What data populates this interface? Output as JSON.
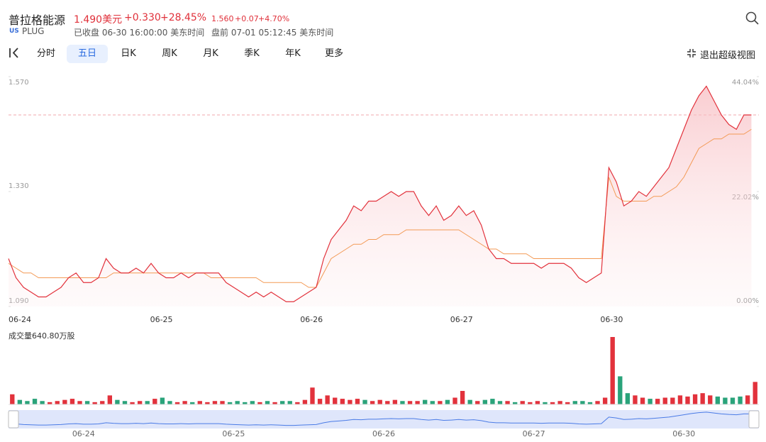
{
  "header": {
    "name": "普拉格能源",
    "price": "1.490美元",
    "change": "+0.330",
    "change_pct": "+28.45%",
    "ext_price": "1.560",
    "ext_change": "+0.07",
    "ext_pct": "+4.70%",
    "market": "US",
    "ticker": "PLUG",
    "status": "已收盘 06-30 16:00:00 美东时间",
    "premarket": "盘前 07-01 05:12:45 美东时间"
  },
  "toolbar": {
    "tabs": [
      "分时",
      "五日",
      "日K",
      "周K",
      "月K",
      "季K",
      "年K",
      "更多"
    ],
    "active": 1,
    "exit": "退出超级视图"
  },
  "chart_data": {
    "type": "line",
    "categories": [
      "06-24",
      null,
      null,
      null,
      null,
      null,
      null,
      null,
      null,
      null,
      null,
      null,
      null,
      null,
      null,
      null,
      null,
      null,
      null,
      null,
      "06-25",
      null,
      null,
      null,
      null,
      null,
      null,
      null,
      null,
      null,
      null,
      null,
      null,
      null,
      null,
      null,
      null,
      null,
      null,
      null,
      "06-26",
      null,
      null,
      null,
      null,
      null,
      null,
      null,
      null,
      null,
      null,
      null,
      null,
      null,
      null,
      null,
      null,
      null,
      null,
      null,
      "06-27",
      null,
      null,
      null,
      null,
      null,
      null,
      null,
      null,
      null,
      null,
      null,
      null,
      null,
      null,
      null,
      null,
      null,
      null,
      null,
      "06-30",
      null,
      null,
      null,
      null,
      null,
      null,
      null,
      null,
      null,
      null,
      null,
      null,
      null,
      null,
      null,
      null,
      null,
      null,
      null
    ],
    "series": [
      {
        "color": "#e2323c",
        "values": [
          1.19,
          1.15,
          1.13,
          1.12,
          1.11,
          1.11,
          1.12,
          1.13,
          1.15,
          1.16,
          1.14,
          1.14,
          1.15,
          1.19,
          1.17,
          1.16,
          1.16,
          1.17,
          1.16,
          1.18,
          1.16,
          1.15,
          1.15,
          1.16,
          1.15,
          1.16,
          1.16,
          1.16,
          1.16,
          1.14,
          1.13,
          1.12,
          1.11,
          1.12,
          1.11,
          1.12,
          1.11,
          1.1,
          1.1,
          1.11,
          1.12,
          1.13,
          1.19,
          1.23,
          1.25,
          1.27,
          1.3,
          1.29,
          1.31,
          1.31,
          1.32,
          1.33,
          1.32,
          1.33,
          1.33,
          1.3,
          1.28,
          1.3,
          1.27,
          1.28,
          1.3,
          1.28,
          1.29,
          1.26,
          1.21,
          1.19,
          1.19,
          1.18,
          1.18,
          1.18,
          1.18,
          1.17,
          1.18,
          1.18,
          1.18,
          1.17,
          1.15,
          1.14,
          1.15,
          1.16,
          1.38,
          1.35,
          1.3,
          1.31,
          1.33,
          1.32,
          1.34,
          1.36,
          1.38,
          1.42,
          1.46,
          1.5,
          1.53,
          1.55,
          1.52,
          1.49,
          1.47,
          1.46,
          1.49,
          1.49
        ]
      },
      {
        "color": "#f39a55",
        "values": [
          1.18,
          1.17,
          1.16,
          1.16,
          1.15,
          1.15,
          1.15,
          1.15,
          1.15,
          1.15,
          1.15,
          1.15,
          1.15,
          1.15,
          1.16,
          1.16,
          1.16,
          1.16,
          1.16,
          1.16,
          1.16,
          1.16,
          1.16,
          1.16,
          1.16,
          1.16,
          1.16,
          1.15,
          1.15,
          1.15,
          1.15,
          1.15,
          1.15,
          1.15,
          1.14,
          1.14,
          1.14,
          1.14,
          1.14,
          1.14,
          1.13,
          1.13,
          1.16,
          1.19,
          1.2,
          1.21,
          1.22,
          1.22,
          1.23,
          1.23,
          1.24,
          1.24,
          1.24,
          1.25,
          1.25,
          1.25,
          1.25,
          1.25,
          1.25,
          1.25,
          1.25,
          1.24,
          1.23,
          1.22,
          1.21,
          1.21,
          1.2,
          1.2,
          1.2,
          1.2,
          1.19,
          1.19,
          1.19,
          1.19,
          1.19,
          1.19,
          1.19,
          1.19,
          1.19,
          1.19,
          1.36,
          1.32,
          1.31,
          1.31,
          1.31,
          1.31,
          1.32,
          1.32,
          1.33,
          1.34,
          1.36,
          1.39,
          1.42,
          1.43,
          1.44,
          1.44,
          1.45,
          1.45,
          1.45,
          1.46
        ]
      }
    ],
    "ylim": [
      1.09,
      1.57
    ],
    "yticks": [
      {
        "value": 1.09,
        "label": "1.090"
      },
      {
        "value": 1.33,
        "label": "1.330"
      },
      {
        "value": 1.57,
        "label": "1.570"
      }
    ],
    "y2lim": [
      0,
      44.04
    ],
    "y2ticks": [
      {
        "value": 0,
        "label": "0.00%"
      },
      {
        "value": 22.02,
        "label": "22.02%"
      },
      {
        "value": 44.04,
        "label": "44.04%"
      }
    ],
    "price_line": 1.49,
    "fill": true
  },
  "volume": {
    "label": "成交量640.80万股",
    "values": [
      9,
      4,
      3,
      5,
      3,
      2,
      3,
      4,
      5,
      3,
      3,
      2,
      3,
      8,
      4,
      3,
      2,
      3,
      3,
      5,
      6,
      3,
      2,
      3,
      2,
      3,
      2,
      3,
      3,
      2,
      3,
      2,
      3,
      2,
      3,
      2,
      3,
      3,
      2,
      4,
      15,
      5,
      8,
      6,
      5,
      4,
      5,
      4,
      3,
      4,
      3,
      4,
      3,
      3,
      3,
      4,
      3,
      3,
      4,
      6,
      12,
      4,
      3,
      4,
      5,
      3,
      3,
      2,
      3,
      2,
      3,
      2,
      2,
      3,
      2,
      3,
      3,
      2,
      3,
      6,
      60,
      25,
      10,
      8,
      6,
      5,
      5,
      6,
      6,
      8,
      7,
      9,
      10,
      8,
      7,
      6,
      6,
      7,
      8,
      20
    ]
  },
  "navigator": {
    "labels": [
      "06-24",
      "06-25",
      "06-26",
      "06-27",
      "06-30"
    ]
  }
}
